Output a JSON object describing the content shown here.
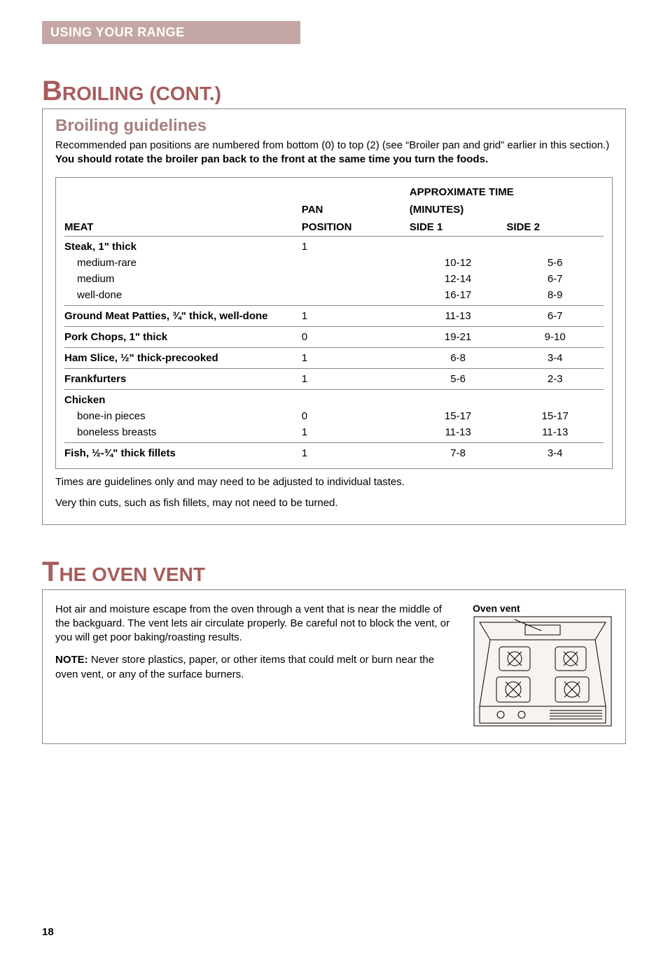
{
  "header": {
    "tab": "USING YOUR RANGE"
  },
  "broiling": {
    "title_big": "B",
    "title_rest": "ROILING",
    "title_suffix": " (CONT.)",
    "subheading": "Broiling guidelines",
    "intro_plain": "Recommended pan positions are numbered from bottom (0) to top (2) (see “Broiler pan and grid” earlier in this section.) ",
    "intro_bold": "You should rotate the broiler pan back to the front at the same time you turn the foods.",
    "table": {
      "col_meat": "MEAT",
      "col_pan_l1": "PAN",
      "col_pan_l2": "POSITION",
      "col_time_header": "APPROXIMATE TIME (MINUTES)",
      "col_time_l1": "APPROXIMATE TIME",
      "col_time_l2": "(MINUTES)",
      "col_side1": "SIDE 1",
      "col_side2": "SIDE 2",
      "rows": [
        {
          "meat": "Steak, 1\" thick",
          "pan": "1",
          "s1": "",
          "s2": "",
          "bold": true
        },
        {
          "meat": "medium-rare",
          "pan": "",
          "s1": "10-12",
          "s2": "5-6",
          "sub": true
        },
        {
          "meat": "medium",
          "pan": "",
          "s1": "12-14",
          "s2": "6-7",
          "sub": true
        },
        {
          "meat": "well-done",
          "pan": "",
          "s1": "16-17",
          "s2": "8-9",
          "sub": true,
          "sep": true
        },
        {
          "meat": "Ground Meat Patties, ¾\" thick, well-done",
          "pan": "1",
          "s1": "11-13",
          "s2": "6-7",
          "bold": true,
          "sep": true
        },
        {
          "meat": "Pork Chops, 1\" thick",
          "pan": "0",
          "s1": "19-21",
          "s2": "9-10",
          "bold": true,
          "sep": true
        },
        {
          "meat": "Ham Slice, ½\" thick-precooked",
          "pan": "1",
          "s1": "6-8",
          "s2": "3-4",
          "bold": true,
          "sep": true
        },
        {
          "meat": "Frankfurters",
          "pan": "1",
          "s1": "5-6",
          "s2": "2-3",
          "bold": true,
          "sep": true
        },
        {
          "meat": "Chicken",
          "pan": "",
          "s1": "",
          "s2": "",
          "bold": true
        },
        {
          "meat": "bone-in pieces",
          "pan": "0",
          "s1": "15-17",
          "s2": "15-17",
          "sub": true
        },
        {
          "meat": "boneless breasts",
          "pan": "1",
          "s1": "11-13",
          "s2": "11-13",
          "sub": true,
          "sep": true
        },
        {
          "meat": "Fish, ½-¾\" thick fillets",
          "pan": "1",
          "s1": "7-8",
          "s2": "3-4",
          "bold": true
        }
      ]
    },
    "footnote1": "Times are guidelines only and may need to be adjusted to individual tastes.",
    "footnote2": "Very thin cuts, such as fish fillets, may not need to be turned."
  },
  "oven_vent": {
    "title_big": "T",
    "title_rest": "HE OVEN VENT",
    "para1": "Hot air and moisture escape from the oven through a vent that is near the middle of the backguard. The vent lets air circulate properly. Be careful not to block the vent, or you will get poor baking/roasting results.",
    "note_label": "NOTE:",
    "note_text": " Never store plastics, paper, or other items that could melt or burn near the oven vent, or any of the surface burners.",
    "illus_label": "Oven vent"
  },
  "page_number": "18",
  "colors": {
    "tab_bg": "#c5a6a6",
    "heading": "#a85c5c",
    "subheading": "#a88080",
    "border": "#888888"
  }
}
